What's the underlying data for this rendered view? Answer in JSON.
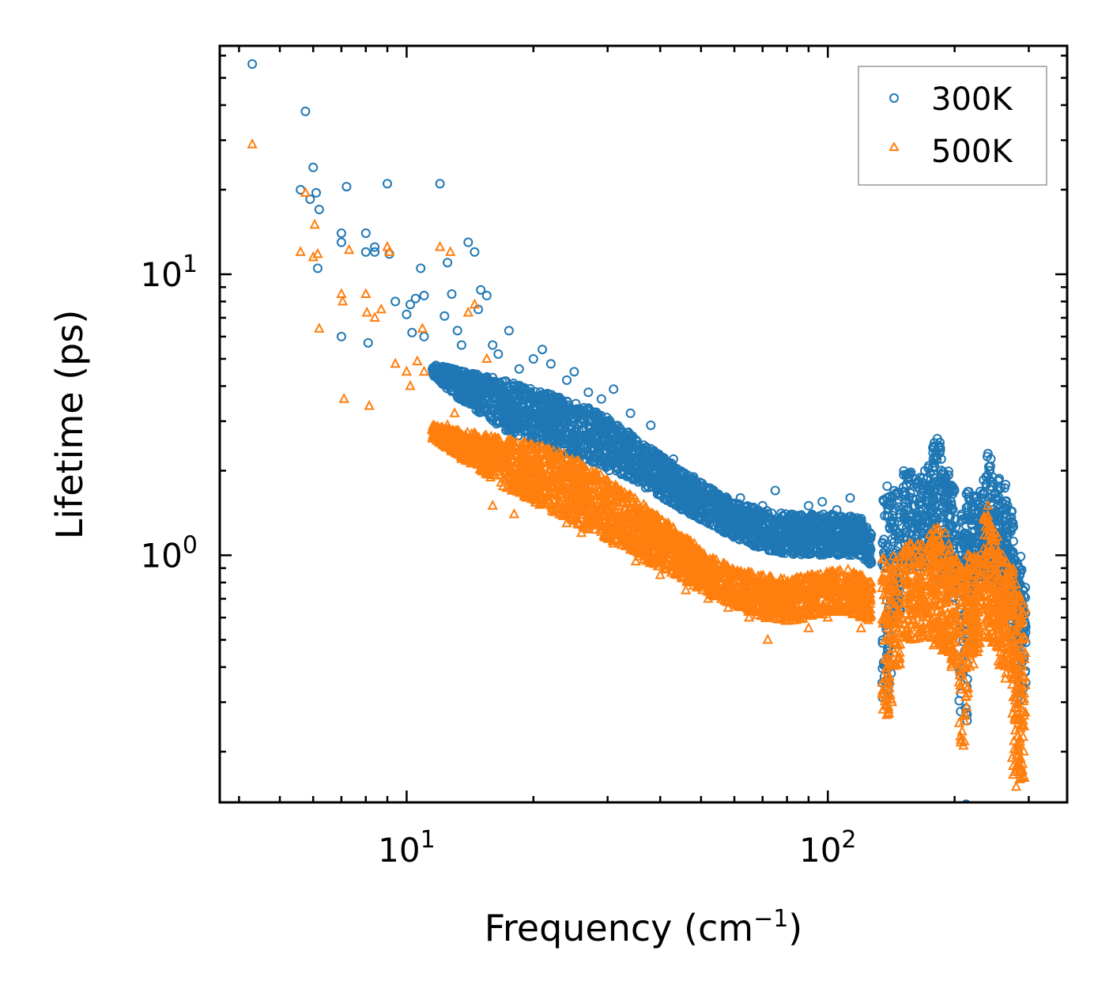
{
  "chart_data": {
    "type": "scatter",
    "xscale": "log",
    "yscale": "log",
    "xlim": [
      3.6,
      370
    ],
    "ylim": [
      0.132,
      65
    ],
    "xlabel": "Frequency (cm",
    "xlabel_sup": "−1",
    "xlabel_end": ")",
    "ylabel": "Lifetime (ps)",
    "x_major_ticks": [
      {
        "value": 10,
        "base": "10",
        "exp": "1"
      },
      {
        "value": 100,
        "base": "10",
        "exp": "2"
      }
    ],
    "y_major_ticks": [
      {
        "value": 1,
        "base": "10",
        "exp": "0"
      },
      {
        "value": 10,
        "base": "10",
        "exp": "1"
      }
    ],
    "legend": {
      "position": "top-right"
    },
    "series": [
      {
        "name": "300K",
        "marker": "circle",
        "color": "#1f77b4",
        "points": [
          [
            4.3,
            56
          ],
          [
            5.6,
            20
          ],
          [
            5.75,
            38
          ],
          [
            5.9,
            18.5
          ],
          [
            6.0,
            24
          ],
          [
            6.1,
            19.5
          ],
          [
            6.2,
            17
          ],
          [
            6.15,
            10.5
          ],
          [
            7.0,
            14
          ],
          [
            7.0,
            13
          ],
          [
            7.0,
            6.0
          ],
          [
            7.2,
            20.5
          ],
          [
            8.0,
            14
          ],
          [
            8.0,
            12
          ],
          [
            8.1,
            5.7
          ],
          [
            8.4,
            12.5
          ],
          [
            8.4,
            12
          ],
          [
            9.0,
            21
          ],
          [
            9.1,
            11.8
          ],
          [
            9.4,
            8.0
          ],
          [
            10.0,
            7.2
          ],
          [
            10.2,
            7.8
          ],
          [
            10.3,
            6.2
          ],
          [
            10.5,
            8.2
          ],
          [
            10.8,
            10.5
          ],
          [
            11.0,
            8.4
          ],
          [
            11.0,
            6.0
          ],
          [
            12.0,
            21
          ],
          [
            12.3,
            7.1
          ],
          [
            12.5,
            11.0
          ],
          [
            12.8,
            8.5
          ],
          [
            13.2,
            6.3
          ],
          [
            13.5,
            5.6
          ],
          [
            14.0,
            13
          ],
          [
            14.5,
            12
          ],
          [
            14.8,
            7.5
          ],
          [
            15.0,
            8.8
          ],
          [
            15.5,
            8.4
          ],
          [
            16.0,
            5.6
          ],
          [
            16.5,
            5.2
          ],
          [
            17.5,
            6.3
          ],
          [
            18.5,
            4.6
          ],
          [
            20.0,
            5.0
          ],
          [
            21.0,
            5.4
          ],
          [
            22.0,
            4.8
          ],
          [
            24.0,
            4.2
          ],
          [
            25.0,
            4.5
          ],
          [
            27.0,
            3.8
          ],
          [
            29.0,
            3.6
          ],
          [
            31.0,
            3.9
          ],
          [
            34.0,
            3.2
          ],
          [
            38.0,
            2.9
          ],
          [
            43.0,
            2.2
          ],
          [
            48.0,
            1.9
          ],
          [
            55.0,
            1.65
          ],
          [
            62.0,
            1.6
          ],
          [
            70.0,
            1.5
          ],
          [
            75.0,
            1.7
          ],
          [
            82.0,
            1.4
          ],
          [
            90.0,
            1.5
          ],
          [
            97.0,
            1.55
          ],
          [
            105.0,
            1.45
          ],
          [
            113.0,
            1.6
          ],
          [
            120.0,
            1.35
          ],
          [
            126.0,
            1.2
          ],
          [
            138.0,
            1.6
          ],
          [
            142.0,
            1.3
          ],
          [
            138.0,
            0.31
          ],
          [
            140.0,
            0.35
          ],
          [
            155.0,
            1.9
          ],
          [
            160.0,
            1.5
          ],
          [
            170.0,
            2.0
          ],
          [
            178.0,
            2.2
          ],
          [
            182.0,
            2.6
          ],
          [
            186.0,
            2.2
          ],
          [
            190.0,
            1.8
          ],
          [
            200.0,
            1.7
          ],
          [
            208.0,
            1.4
          ],
          [
            213.0,
            0.13
          ],
          [
            216.0,
            1.5
          ],
          [
            222.0,
            1.6
          ],
          [
            232.0,
            1.5
          ],
          [
            240.0,
            2.3
          ],
          [
            246.0,
            1.9
          ],
          [
            255.0,
            1.6
          ],
          [
            262.0,
            1.4
          ],
          [
            270.0,
            0.95
          ],
          [
            278.0,
            0.85
          ],
          [
            284.0,
            0.7
          ]
        ],
        "band": {
          "x": [
            11.5,
            13,
            15,
            17,
            20,
            24,
            28,
            33,
            38,
            45,
            52,
            60,
            70,
            80,
            90,
            100,
            110,
            120,
            127
          ],
          "y_low": [
            4.4,
            3.7,
            3.2,
            2.8,
            2.5,
            2.3,
            2.1,
            1.9,
            1.7,
            1.45,
            1.3,
            1.15,
            1.05,
            1.0,
            1.0,
            1.0,
            1.0,
            1.0,
            0.9
          ],
          "y_high": [
            4.8,
            4.6,
            4.4,
            4.2,
            3.9,
            3.6,
            3.3,
            2.8,
            2.4,
            2.0,
            1.75,
            1.55,
            1.45,
            1.4,
            1.4,
            1.4,
            1.4,
            1.35,
            1.2
          ],
          "spikes": [
            {
              "x": 138,
              "lo": 0.31,
              "hi": 1.8
            },
            {
              "x": 145,
              "lo": 0.6,
              "hi": 1.7
            },
            {
              "x": 155,
              "lo": 0.9,
              "hi": 2.0
            },
            {
              "x": 165,
              "lo": 0.9,
              "hi": 1.9
            },
            {
              "x": 175,
              "lo": 0.9,
              "hi": 2.1
            },
            {
              "x": 182,
              "lo": 0.8,
              "hi": 2.6
            },
            {
              "x": 190,
              "lo": 0.8,
              "hi": 2.0
            },
            {
              "x": 198,
              "lo": 0.7,
              "hi": 1.8
            },
            {
              "x": 210,
              "lo": 0.25,
              "hi": 1.5
            },
            {
              "x": 218,
              "lo": 0.7,
              "hi": 1.7
            },
            {
              "x": 228,
              "lo": 0.8,
              "hi": 1.7
            },
            {
              "x": 240,
              "lo": 0.8,
              "hi": 2.3
            },
            {
              "x": 250,
              "lo": 0.8,
              "hi": 1.9
            },
            {
              "x": 260,
              "lo": 0.7,
              "hi": 1.8
            },
            {
              "x": 270,
              "lo": 0.6,
              "hi": 1.5
            },
            {
              "x": 280,
              "lo": 0.5,
              "hi": 1.0
            },
            {
              "x": 288,
              "lo": 0.3,
              "hi": 0.9
            }
          ]
        }
      },
      {
        "name": "500K",
        "marker": "triangle",
        "color": "#ff7f0e",
        "points": [
          [
            4.3,
            29
          ],
          [
            5.6,
            12
          ],
          [
            5.75,
            19.5
          ],
          [
            6.0,
            11.5
          ],
          [
            6.05,
            15
          ],
          [
            6.15,
            11.8
          ],
          [
            6.2,
            6.4
          ],
          [
            7.0,
            8.5
          ],
          [
            7.05,
            8.0
          ],
          [
            7.1,
            3.6
          ],
          [
            7.3,
            12.2
          ],
          [
            8.0,
            8.5
          ],
          [
            8.05,
            7.3
          ],
          [
            8.15,
            3.4
          ],
          [
            8.4,
            7.0
          ],
          [
            8.7,
            7.5
          ],
          [
            9.0,
            12.5
          ],
          [
            9.1,
            12.0
          ],
          [
            9.4,
            4.8
          ],
          [
            10.0,
            4.5
          ],
          [
            10.2,
            4.0
          ],
          [
            10.6,
            4.9
          ],
          [
            10.9,
            6.4
          ],
          [
            11.0,
            4.5
          ],
          [
            12.0,
            12.5
          ],
          [
            12.5,
            2.9
          ],
          [
            12.7,
            12.0
          ],
          [
            13.0,
            3.2
          ],
          [
            13.5,
            2.2
          ],
          [
            14.0,
            7.3
          ],
          [
            14.5,
            7.8
          ],
          [
            15.0,
            2.4
          ],
          [
            15.5,
            5.0
          ],
          [
            16.0,
            1.5
          ],
          [
            17.0,
            2.2
          ],
          [
            18.0,
            1.4
          ],
          [
            19.0,
            2.0
          ],
          [
            20.0,
            1.6
          ],
          [
            22.0,
            1.5
          ],
          [
            24.0,
            1.3
          ],
          [
            26.0,
            1.2
          ],
          [
            28.0,
            1.3
          ],
          [
            31.0,
            1.1
          ],
          [
            35.0,
            0.95
          ],
          [
            40.0,
            0.85
          ],
          [
            46.0,
            0.75
          ],
          [
            52.0,
            0.7
          ],
          [
            58.0,
            0.65
          ],
          [
            65.0,
            0.6
          ],
          [
            72.0,
            0.5
          ],
          [
            80.0,
            0.6
          ],
          [
            90.0,
            0.55
          ],
          [
            100.0,
            0.6
          ],
          [
            110.0,
            0.65
          ],
          [
            120.0,
            0.55
          ],
          [
            125.0,
            0.6
          ],
          [
            138.0,
            0.27
          ],
          [
            142.0,
            0.3
          ],
          [
            155.0,
            1.0
          ],
          [
            170.0,
            0.9
          ],
          [
            180.0,
            1.1
          ],
          [
            190.0,
            1.2
          ],
          [
            210.0,
            0.21
          ],
          [
            215.0,
            1.0
          ],
          [
            240.0,
            1.5
          ],
          [
            250.0,
            1.2
          ],
          [
            260.0,
            1.0
          ],
          [
            270.0,
            0.7
          ],
          [
            280.0,
            0.15
          ],
          [
            285.0,
            0.17
          ],
          [
            288.0,
            0.5
          ]
        ],
        "band": {
          "x": [
            11.5,
            13,
            15,
            17,
            20,
            24,
            28,
            33,
            38,
            45,
            52,
            60,
            70,
            80,
            90,
            100,
            110,
            120,
            127
          ],
          "y_low": [
            2.6,
            2.3,
            2.0,
            1.75,
            1.55,
            1.35,
            1.2,
            1.05,
            0.93,
            0.82,
            0.73,
            0.66,
            0.6,
            0.58,
            0.6,
            0.62,
            0.63,
            0.6,
            0.58
          ],
          "y_high": [
            2.9,
            2.8,
            2.7,
            2.6,
            2.5,
            2.3,
            2.0,
            1.7,
            1.45,
            1.2,
            1.0,
            0.9,
            0.85,
            0.82,
            0.85,
            0.88,
            0.9,
            0.85,
            0.8
          ],
          "spikes": [
            {
              "x": 138,
              "lo": 0.27,
              "hi": 1.0
            },
            {
              "x": 145,
              "lo": 0.4,
              "hi": 1.0
            },
            {
              "x": 155,
              "lo": 0.5,
              "hi": 1.1
            },
            {
              "x": 165,
              "lo": 0.5,
              "hi": 1.1
            },
            {
              "x": 175,
              "lo": 0.5,
              "hi": 1.2
            },
            {
              "x": 182,
              "lo": 0.45,
              "hi": 1.25
            },
            {
              "x": 190,
              "lo": 0.45,
              "hi": 1.1
            },
            {
              "x": 198,
              "lo": 0.4,
              "hi": 1.0
            },
            {
              "x": 210,
              "lo": 0.21,
              "hi": 0.9
            },
            {
              "x": 218,
              "lo": 0.4,
              "hi": 1.0
            },
            {
              "x": 228,
              "lo": 0.45,
              "hi": 1.0
            },
            {
              "x": 240,
              "lo": 0.5,
              "hi": 1.4
            },
            {
              "x": 250,
              "lo": 0.45,
              "hi": 1.2
            },
            {
              "x": 260,
              "lo": 0.4,
              "hi": 1.0
            },
            {
              "x": 270,
              "lo": 0.35,
              "hi": 0.9
            },
            {
              "x": 280,
              "lo": 0.15,
              "hi": 0.8
            },
            {
              "x": 288,
              "lo": 0.16,
              "hi": 0.7
            }
          ]
        }
      }
    ]
  }
}
